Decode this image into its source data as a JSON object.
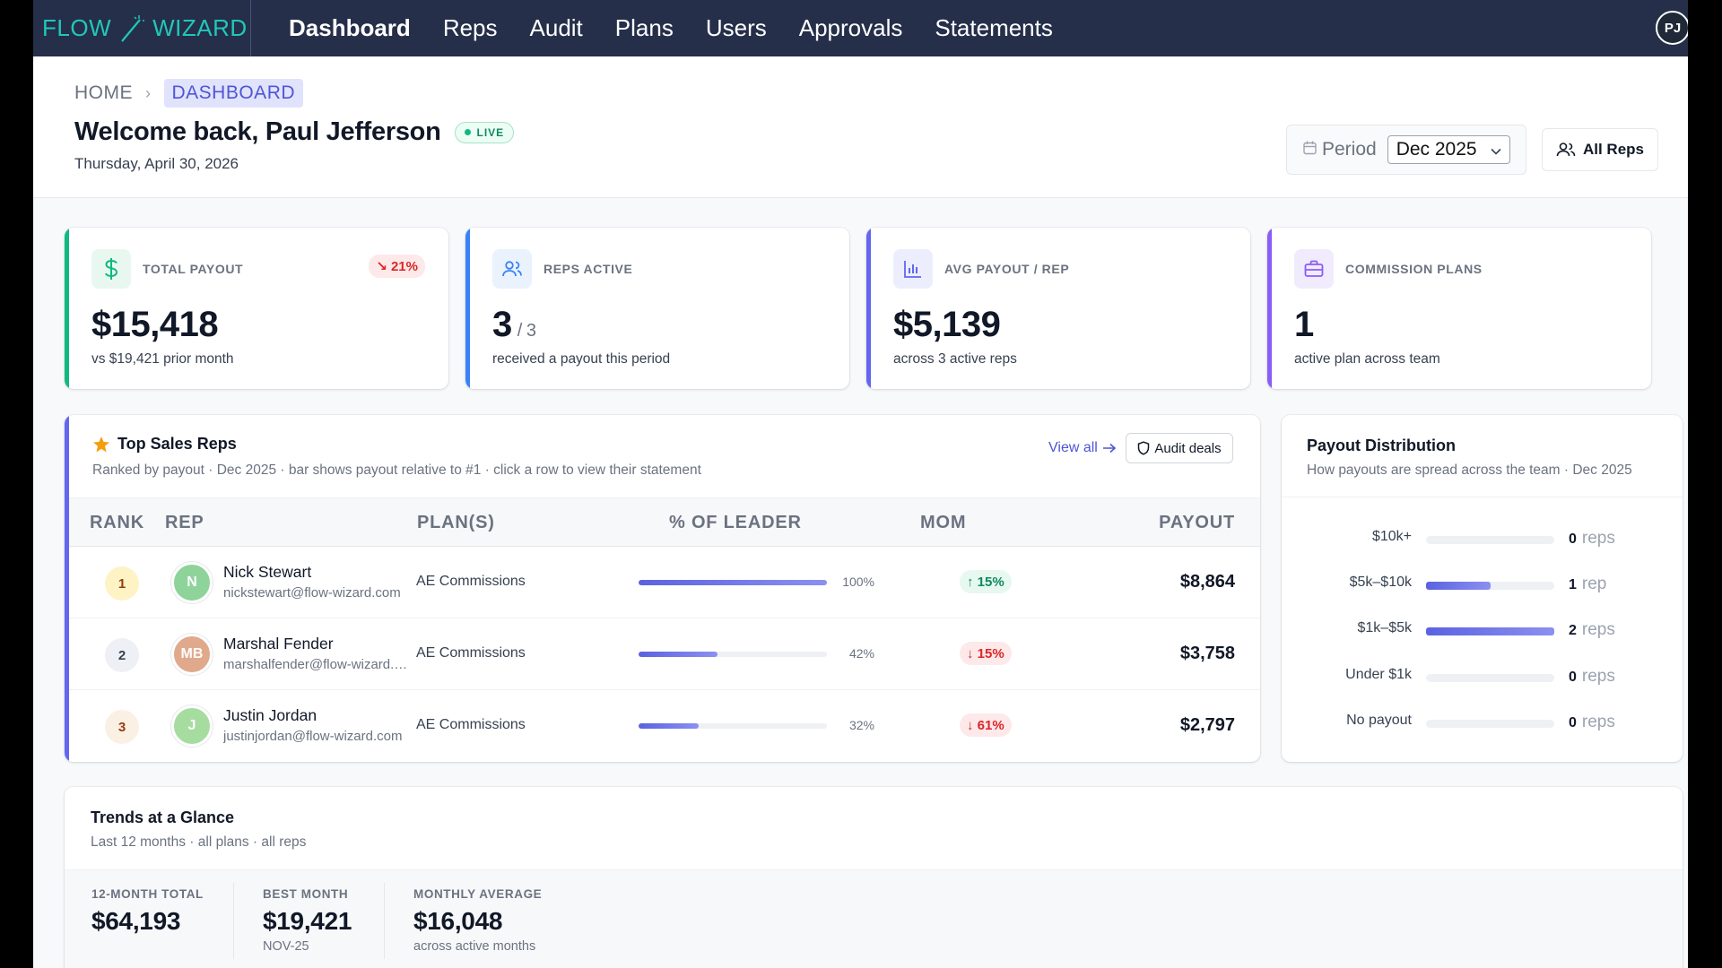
{
  "brand": {
    "left": "FLOW",
    "right": "WIZARD"
  },
  "nav": [
    {
      "label": "Dashboard",
      "active": true
    },
    {
      "label": "Reps",
      "active": false
    },
    {
      "label": "Audit",
      "active": false
    },
    {
      "label": "Plans",
      "active": false
    },
    {
      "label": "Users",
      "active": false
    },
    {
      "label": "Approvals",
      "active": false
    },
    {
      "label": "Statements",
      "active": false
    }
  ],
  "user_initials": "PJ",
  "breadcrumb": {
    "home": "HOME",
    "current": "DASHBOARD"
  },
  "welcome": "Welcome back, Paul Jefferson",
  "live_label": "LIVE",
  "date": "Thursday, April 30, 2026",
  "period": {
    "label": "Period",
    "value": "Dec 2025"
  },
  "all_reps_label": "All Reps",
  "kpis": [
    {
      "label": "TOTAL PAYOUT",
      "value": "$15,418",
      "sub": "vs $19,421 prior month",
      "badge": "21%",
      "color": "#10b981"
    },
    {
      "label": "REPS ACTIVE",
      "value": "3",
      "denom": "/ 3",
      "sub": "received a payout this period",
      "color": "#3b82f6"
    },
    {
      "label": "AVG PAYOUT / REP",
      "value": "$5,139",
      "sub": "across 3 active reps",
      "color": "#6366f1"
    },
    {
      "label": "COMMISSION PLANS",
      "value": "1",
      "sub": "active plan across team",
      "color": "#8b5cf6"
    }
  ],
  "top_reps": {
    "title": "Top Sales Reps",
    "subtitle": "Ranked by payout · Dec 2025 · bar shows payout relative to #1 · click a row to view their statement",
    "view_all": "View all",
    "audit_label": "Audit deals",
    "columns": [
      "RANK",
      "REP",
      "PLAN(S)",
      "% OF LEADER",
      "MOM",
      "PAYOUT"
    ],
    "rows": [
      {
        "rank": "1",
        "initials": "N",
        "name": "Nick Stewart",
        "email": "nickstewart@flow-wizard.com",
        "plan": "AE Commissions",
        "pct": "100%",
        "pct_value": 1.0,
        "mom": "15%",
        "mom_dir": "up",
        "payout": "$8,864",
        "avatar_color": "#8ed39a",
        "rank_bg": "#fdf3c4",
        "rank_fg": "#92400e"
      },
      {
        "rank": "2",
        "initials": "MB",
        "name": "Marshal Fender",
        "email": "marshalfender@flow-wizard.com",
        "plan": "AE Commissions",
        "pct": "42%",
        "pct_value": 0.42,
        "mom": "15%",
        "mom_dir": "down",
        "payout": "$3,758",
        "avatar_color": "#e0a98c",
        "rank_bg": "#eef0f6",
        "rank_fg": "#374151"
      },
      {
        "rank": "3",
        "initials": "J",
        "name": "Justin Jordan",
        "email": "justinjordan@flow-wizard.com",
        "plan": "AE Commissions",
        "pct": "32%",
        "pct_value": 0.32,
        "mom": "61%",
        "mom_dir": "down",
        "payout": "$2,797",
        "avatar_color": "#a6dca0",
        "rank_bg": "#fbf0e4",
        "rank_fg": "#92400e"
      }
    ]
  },
  "distribution": {
    "title": "Payout Distribution",
    "subtitle": "How payouts are spread across the team · Dec 2025",
    "rows": [
      {
        "label": "$10k+",
        "count": "0",
        "unit": "reps",
        "fraction": 0
      },
      {
        "label": "$5k–$10k",
        "count": "1",
        "unit": "rep",
        "fraction": 0.5
      },
      {
        "label": "$1k–$5k",
        "count": "2",
        "unit": "reps",
        "fraction": 1.0
      },
      {
        "label": "Under $1k",
        "count": "0",
        "unit": "reps",
        "fraction": 0
      },
      {
        "label": "No payout",
        "count": "0",
        "unit": "reps",
        "fraction": 0
      }
    ]
  },
  "trends": {
    "title": "Trends at a Glance",
    "subtitle": "Last 12 months · all plans · all reps",
    "stats": [
      {
        "label": "12-MONTH TOTAL",
        "value": "$64,193",
        "sub": ""
      },
      {
        "label": "BEST MONTH",
        "value": "$19,421",
        "sub": "NOV-25"
      },
      {
        "label": "MONTHLY AVERAGE",
        "value": "$16,048",
        "sub": "across active months"
      }
    ]
  }
}
